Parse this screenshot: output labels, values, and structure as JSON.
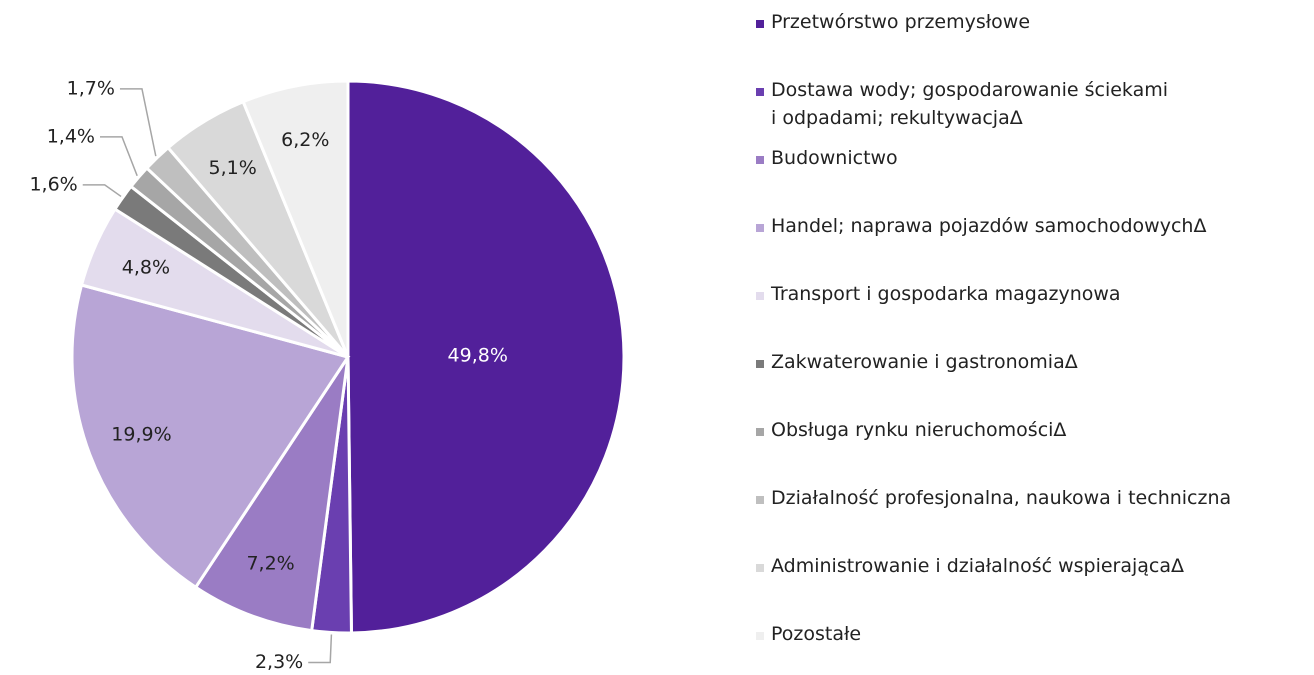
{
  "chart_data": {
    "type": "pie",
    "categories": [
      "Przetwórstwo przemysłowe",
      "Dostawa wody; gospodarowanie ściekami\ni odpadami; rekultywacjaΔ",
      "Budownictwo",
      "Handel; naprawa pojazdów samochodowychΔ",
      "Transport i gospodarka magazynowa",
      "Zakwaterowanie i gastronomiaΔ",
      "Obsługa rynku nieruchomościΔ",
      "Działalność profesjonalna, naukowa i techniczna",
      "Administrowanie i działalność wspierającaΔ",
      "Pozostałe"
    ],
    "values": [
      49.8,
      2.3,
      7.2,
      19.9,
      4.8,
      1.6,
      1.4,
      1.7,
      5.1,
      6.2
    ],
    "value_labels": [
      "49,8%",
      "2,3%",
      "7,2%",
      "19,9%",
      "4,8%",
      "1,6%",
      "1,4%",
      "1,7%",
      "5,1%",
      "6,2%"
    ],
    "colors": [
      "#52209a",
      "#6a3fb0",
      "#9a7cc4",
      "#b8a5d6",
      "#e3dced",
      "#7a7a7a",
      "#a6a6a6",
      "#bfbfbf",
      "#d9d9d9",
      "#efefef"
    ]
  }
}
